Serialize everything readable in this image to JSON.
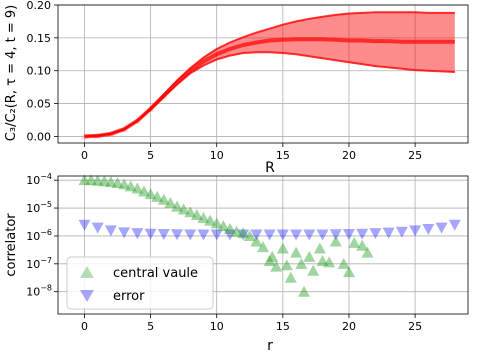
{
  "chart_data": [
    {
      "type": "area",
      "ylabel": "C₃/C₂(R, τ = 4, t = 9)",
      "xlabel": "R",
      "xlim": [
        -2,
        29
      ],
      "ylim": [
        -0.01,
        0.2
      ],
      "xticks": [
        0,
        5,
        10,
        15,
        20,
        25
      ],
      "yticks": [
        0.0,
        0.05,
        0.1,
        0.15,
        0.2
      ],
      "ytick_labels": [
        "0.00",
        "0.05",
        "0.10",
        "0.15",
        "0.20"
      ],
      "grid": true,
      "color": "#ff0000",
      "series": [
        {
          "x": [
            0,
            1,
            2,
            3,
            4,
            5,
            6,
            7,
            8,
            9,
            10,
            11,
            12,
            13,
            14,
            15,
            16,
            17,
            18,
            19,
            20,
            21,
            22,
            23,
            24,
            25,
            26,
            27,
            28
          ],
          "central": [
            0.0,
            0.001,
            0.004,
            0.011,
            0.024,
            0.042,
            0.062,
            0.082,
            0.1,
            0.114,
            0.125,
            0.133,
            0.139,
            0.143,
            0.146,
            0.147,
            0.148,
            0.148,
            0.148,
            0.147,
            0.146,
            0.146,
            0.145,
            0.145,
            0.144,
            0.144,
            0.144,
            0.144,
            0.144
          ],
          "upper": [
            0.0,
            0.001,
            0.004,
            0.011,
            0.024,
            0.043,
            0.064,
            0.085,
            0.104,
            0.12,
            0.133,
            0.143,
            0.151,
            0.158,
            0.164,
            0.17,
            0.175,
            0.179,
            0.182,
            0.185,
            0.187,
            0.188,
            0.189,
            0.189,
            0.189,
            0.189,
            0.188,
            0.188,
            0.188
          ],
          "lower": [
            0.0,
            0.001,
            0.004,
            0.011,
            0.024,
            0.041,
            0.06,
            0.079,
            0.096,
            0.108,
            0.117,
            0.123,
            0.127,
            0.128,
            0.128,
            0.127,
            0.125,
            0.122,
            0.119,
            0.116,
            0.113,
            0.11,
            0.107,
            0.105,
            0.103,
            0.101,
            0.1,
            0.099,
            0.098
          ]
        }
      ]
    },
    {
      "type": "scatter",
      "ylabel": "correlator",
      "xlabel": "r",
      "xlim": [
        -2,
        29
      ],
      "ylog": true,
      "ylim_log10": [
        -8.8,
        -3.85
      ],
      "xticks": [
        0,
        5,
        10,
        15,
        20,
        25
      ],
      "yticks": [
        -8,
        -7,
        -6,
        -5,
        -4
      ],
      "grid": true,
      "legend": "lower-left",
      "series": [
        {
          "name": "central vaule",
          "marker": "triangle-up",
          "color": "#2ca02c",
          "x": [
            0,
            0.5,
            1,
            1.5,
            2,
            2.5,
            3,
            3.5,
            4,
            4.5,
            5,
            5.5,
            6,
            6.5,
            7,
            7.5,
            8,
            8.5,
            9,
            9.5,
            10,
            10.5,
            11,
            11.5,
            12,
            12.5,
            13,
            13.5,
            14,
            14.2,
            14.5,
            15,
            15.3,
            15.6,
            16,
            16.4,
            16.6,
            17,
            17.3,
            17.8,
            18,
            18.5,
            19,
            19.6,
            20,
            20.4,
            21,
            21.4
          ],
          "log10_y": [
            -4.0,
            -4.0,
            -4.02,
            -4.04,
            -4.07,
            -4.1,
            -4.15,
            -4.22,
            -4.3,
            -4.4,
            -4.5,
            -4.6,
            -4.7,
            -4.82,
            -4.95,
            -5.05,
            -5.15,
            -5.25,
            -5.35,
            -5.45,
            -5.55,
            -5.65,
            -5.75,
            -5.85,
            -5.9,
            -6.0,
            -6.2,
            -6.4,
            -6.9,
            -6.75,
            -7.1,
            -6.45,
            -7.05,
            -7.5,
            -6.6,
            -7.0,
            -8.0,
            -6.75,
            -7.25,
            -6.45,
            -6.9,
            -6.95,
            -6.2,
            -7.0,
            -7.3,
            -6.25,
            -6.35,
            -6.6
          ]
        },
        {
          "name": "error",
          "marker": "triangle-down",
          "color": "#0000ff",
          "x": [
            0,
            1,
            2,
            3,
            4,
            5,
            6,
            7,
            8,
            9,
            10,
            11,
            12,
            13,
            14,
            15,
            16,
            17,
            18,
            19,
            20,
            21,
            22,
            23,
            24,
            25,
            26,
            27,
            28
          ],
          "log10_y": [
            -5.6,
            -5.7,
            -5.8,
            -5.87,
            -5.9,
            -5.92,
            -5.93,
            -5.94,
            -5.95,
            -5.95,
            -5.95,
            -5.95,
            -5.95,
            -5.95,
            -5.95,
            -5.95,
            -5.95,
            -5.95,
            -5.95,
            -5.94,
            -5.93,
            -5.92,
            -5.9,
            -5.88,
            -5.85,
            -5.8,
            -5.75,
            -5.7,
            -5.6
          ]
        }
      ]
    }
  ]
}
